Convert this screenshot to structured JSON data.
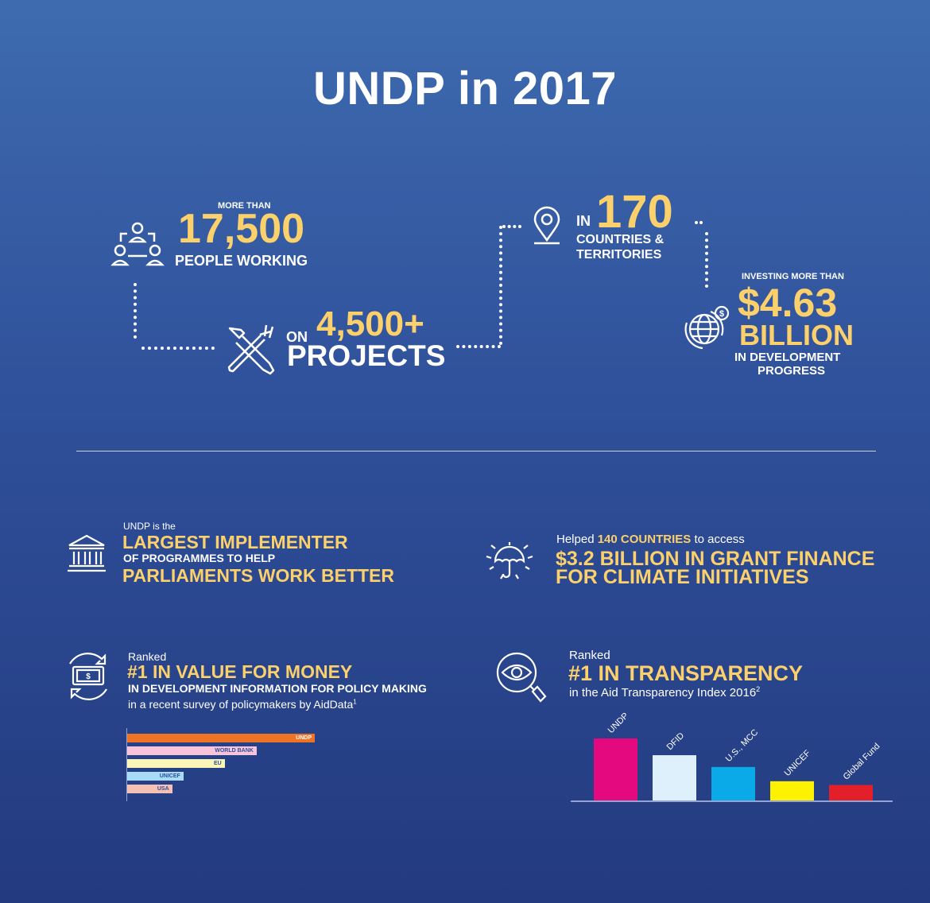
{
  "title": "UNDP in 2017",
  "colors": {
    "background_top": "#3e6bb0",
    "background_bottom": "#233a7f",
    "accent": "#fcd06a",
    "text": "#ffffff"
  },
  "stats": {
    "people": {
      "prefix": "MORE THAN",
      "value": "17,500",
      "suffix": "PEOPLE WORKING",
      "icon": "people-network-icon"
    },
    "projects": {
      "prefix": "ON",
      "value": "4,500+",
      "suffix": "PROJECTS",
      "icon": "tools-icon"
    },
    "countries": {
      "prefix": "IN",
      "value": "170",
      "suffix_line1": "COUNTRIES &",
      "suffix_line2": "TERRITORIES",
      "icon": "location-pin-icon"
    },
    "investment": {
      "prefix": "INVESTING MORE THAN",
      "value": "$4.63",
      "value_line2": "BILLION",
      "suffix_line1": "IN DEVELOPMENT",
      "suffix_line2": "PROGRESS",
      "icon": "globe-dollar-icon"
    }
  },
  "facts": {
    "parliaments": {
      "intro": "UNDP is the",
      "headline": "LARGEST IMPLEMENTER",
      "middle": "OF PROGRAMMES TO HELP",
      "headline2": "PARLIAMENTS WORK BETTER",
      "icon": "institution-icon"
    },
    "climate": {
      "intro": "Helped",
      "highlight": "140 COUNTRIES",
      "intro_end": "to access",
      "headline": "$3.2 BILLION IN GRANT FINANCE",
      "headline2": "FOR CLIMATE INITIATIVES",
      "icon": "umbrella-icon"
    },
    "value": {
      "intro": "Ranked",
      "headline": "#1 IN VALUE FOR MONEY",
      "middle": "IN DEVELOPMENT INFORMATION FOR POLICY MAKING",
      "detail": "in a recent survey of policymakers by AidData",
      "footnote": "1",
      "icon": "money-cycle-icon"
    },
    "transparency": {
      "intro": "Ranked",
      "headline": "#1 IN TRANSPARENCY",
      "detail": "in the Aid Transparency Index 2016",
      "footnote": "2",
      "icon": "eye-search-icon"
    }
  },
  "chart_data": [
    {
      "type": "bar",
      "orientation": "horizontal",
      "categories": [
        "UNDP",
        "WORLD BANK",
        "EU",
        "UNICEF",
        "USA"
      ],
      "values": [
        100,
        69,
        52,
        30,
        24
      ],
      "colors": [
        "#ee7325",
        "#f7c4dc",
        "#fdf5b8",
        "#a8dcf6",
        "#f6c0b3"
      ],
      "label_colors": [
        "#ffffff",
        "#2f509a",
        "#2f509a",
        "#2f509a",
        "#2f509a"
      ],
      "xlim": [
        0,
        100
      ]
    },
    {
      "type": "bar",
      "orientation": "vertical",
      "categories": [
        "UNDP",
        "DFID",
        "U.S., MCC",
        "UNICEF",
        "Global Fund"
      ],
      "values": [
        100,
        73,
        54,
        31,
        25
      ],
      "colors": [
        "#e5097f",
        "#def0fb",
        "#0aa9e8",
        "#fff200",
        "#e3202a"
      ],
      "ylim": [
        0,
        100
      ]
    }
  ]
}
